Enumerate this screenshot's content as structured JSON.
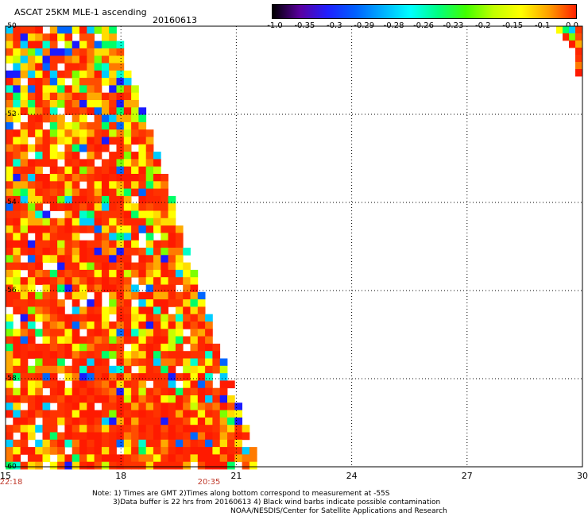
{
  "header": {
    "title": "ASCAT 25KM MLE-1 ascending",
    "date": "20160613"
  },
  "colorbar": {
    "labels": [
      "-1.0",
      "-0.35",
      "-0.3",
      "-0.29",
      "-0.28",
      "-0.26",
      "-0.23",
      "-0.2",
      "-0.15",
      "-0.1",
      "0.0"
    ],
    "colors": [
      "#000000",
      "#5a00a0",
      "#2020ff",
      "#0060ff",
      "#00b0ff",
      "#00ffff",
      "#00ff80",
      "#40ff00",
      "#c0ff00",
      "#ffff00",
      "#ffa000",
      "#ff2000"
    ]
  },
  "axes": {
    "x_ticks": [
      "15",
      "18",
      "21",
      "24",
      "27",
      "30"
    ],
    "y_ticks": [
      "-50",
      "-52",
      "-54",
      "-56",
      "-58",
      "-60"
    ]
  },
  "time_marks": [
    "22:18",
    "20:35"
  ],
  "notes": {
    "line1": "Note: 1) Times are GMT 2)Times along bottom correspond to measurement at -55S",
    "line2": "3)Data buffer is 22 hrs from 20160613 4) Black wind barbs indicate possible contamination",
    "line3": "NOAA/NESDIS/Center for Satellite Applications and Research"
  }
}
